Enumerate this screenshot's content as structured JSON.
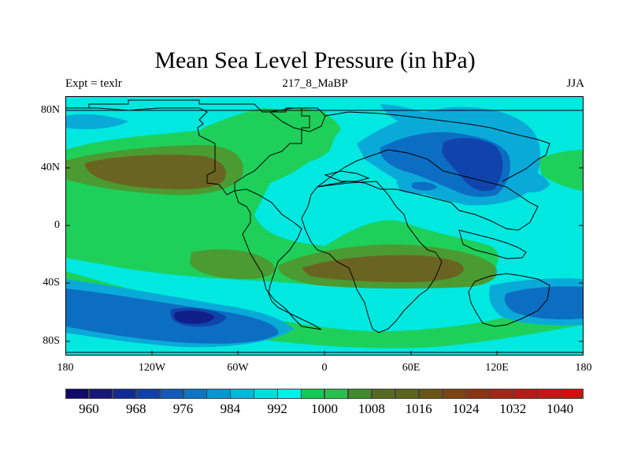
{
  "title": "Mean Sea Level Pressure (in hPa)",
  "left_label": "Expt = texlr",
  "center_label": "217_8_MaBP",
  "right_label": "JJA",
  "map": {
    "lat_ticks": [
      "80N",
      "40N",
      "0",
      "40S",
      "80S"
    ],
    "lon_ticks": [
      "180",
      "120W",
      "60W",
      "0",
      "60E",
      "120E",
      "180"
    ],
    "fill_colors": {
      "cyan_992_1000": "#00e8e0",
      "green_1000_1008": "#1ed05a",
      "green2_1008_1016": "#4c9a32",
      "olive_1016_1024": "#6a6422",
      "blue_984_992": "#0aaad8",
      "blue2_976_984": "#0c6ec2",
      "deep_blue_968_976": "#1044ac",
      "navy_960_968": "#101e88"
    }
  },
  "colorbar": {
    "labels": [
      "960",
      "968",
      "976",
      "984",
      "992",
      "1000",
      "1008",
      "1016",
      "1024",
      "1032",
      "1040"
    ],
    "colors": [
      "#100a6a",
      "#151878",
      "#102a98",
      "#1040a8",
      "#105cb8",
      "#0e74c4",
      "#0a94d2",
      "#04b6dc",
      "#00dcdc",
      "#00f0e8",
      "#14c854",
      "#28c04c",
      "#428a2e",
      "#566a24",
      "#5c6420",
      "#6a5418",
      "#7a4414",
      "#8a3414",
      "#a02818",
      "#b41c18",
      "#c01818",
      "#d01010"
    ]
  }
}
